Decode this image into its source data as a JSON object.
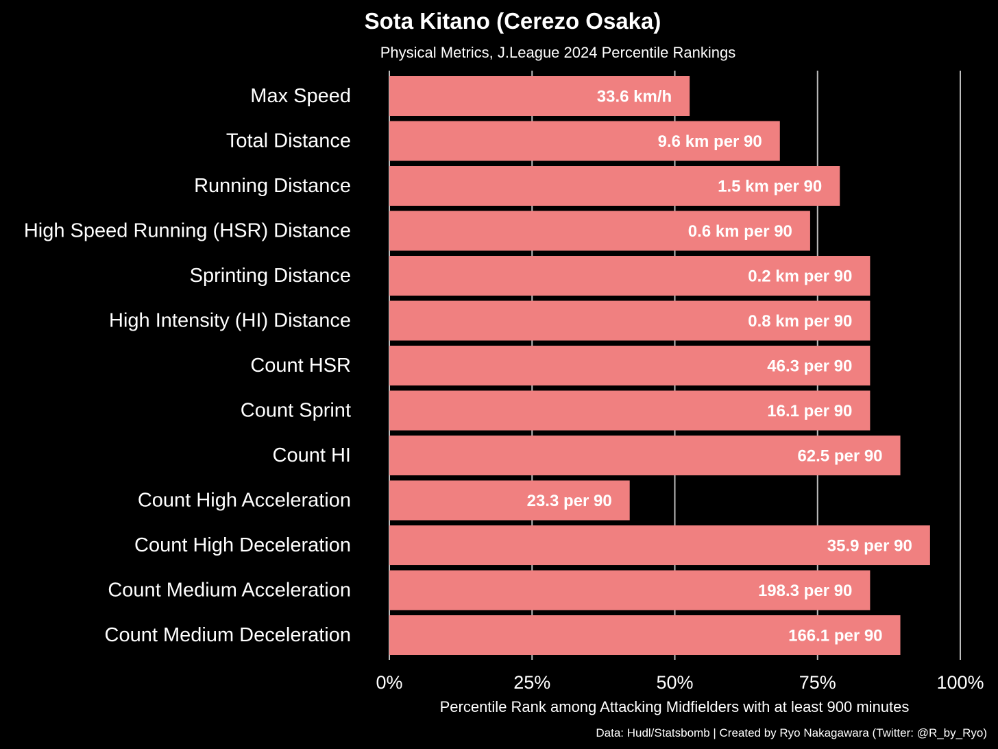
{
  "chart_data": {
    "type": "bar",
    "orientation": "horizontal",
    "title": "Sota Kitano (Cerezo Osaka)",
    "subtitle": "Physical Metrics, J.League 2024 Percentile Rankings",
    "xlabel": "Percentile Rank among Attacking Midfielders with at least 900 minutes",
    "caption": "Data: Hudl/Statsbomb | Created by Ryo Nakagawara (Twitter: @R_by_Ryo)",
    "xlim": [
      0,
      100
    ],
    "xticks": [
      0,
      25,
      50,
      75,
      100
    ],
    "xtick_labels": [
      "0%",
      "25%",
      "50%",
      "75%",
      "100%"
    ],
    "grid": "vertical",
    "bar_color": "#f08080",
    "background_color": "#000000",
    "grid_color": "#bdbdbd",
    "categories": [
      "Max Speed",
      "Total Distance",
      "Running Distance",
      "High Speed Running (HSR) Distance",
      "Sprinting Distance",
      "High Intensity (HI) Distance",
      "Count HSR",
      "Count Sprint",
      "Count HI",
      "Count High Acceleration",
      "Count High Deceleration",
      "Count Medium Acceleration",
      "Count Medium Deceleration"
    ],
    "values": [
      52.6,
      68.4,
      78.9,
      73.7,
      84.2,
      84.2,
      84.2,
      84.2,
      89.5,
      42.1,
      94.7,
      84.2,
      89.5
    ],
    "bar_labels": [
      "33.6 km/h",
      "9.6 km per 90",
      "1.5 km per 90",
      "0.6 km per 90",
      "0.2 km per 90",
      "0.8 km per 90",
      "46.3 per 90",
      "16.1 per 90",
      "62.5 per 90",
      "23.3 per 90",
      "35.9 per 90",
      "198.3 per 90",
      "166.1 per 90"
    ]
  }
}
